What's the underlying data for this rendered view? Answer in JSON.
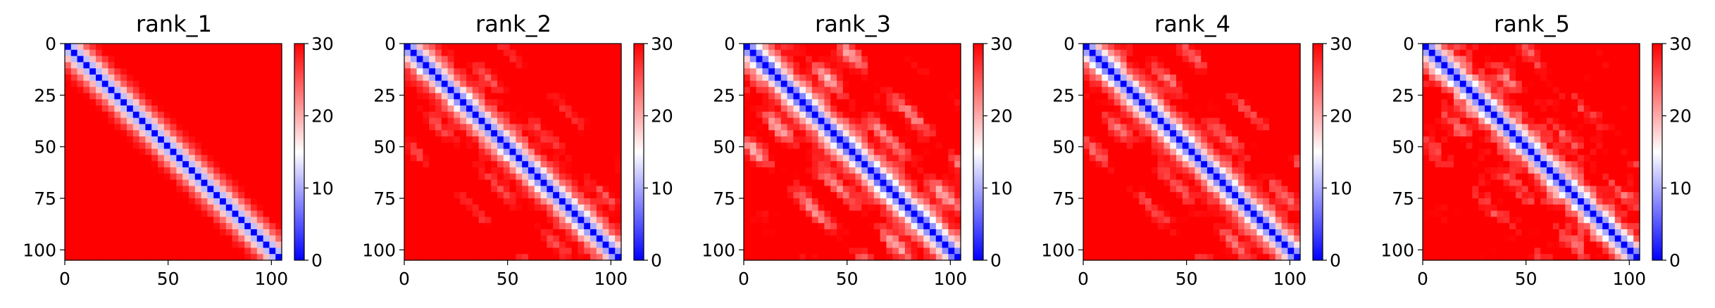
{
  "chart_data": [
    {
      "type": "heatmap",
      "title": "rank_1",
      "pattern": "smooth",
      "matrix_size": 105,
      "x_ticks": [
        0,
        50,
        100
      ],
      "y_ticks": [
        0,
        25,
        50,
        75,
        100
      ],
      "colorbar": {
        "min": 0,
        "max": 30,
        "ticks": [
          0,
          10,
          20,
          30
        ],
        "colormap": "bwr",
        "colors": [
          "#0000ff",
          "#ffffff",
          "#ff0000"
        ]
      },
      "description": "distance map: low values (blue) along the main diagonal, high values (red) elsewhere"
    },
    {
      "type": "heatmap",
      "title": "rank_2",
      "pattern": "light_bands",
      "matrix_size": 105,
      "x_ticks": [
        0,
        50,
        100
      ],
      "y_ticks": [
        0,
        25,
        50,
        75,
        100
      ],
      "colorbar": {
        "min": 0,
        "max": 30,
        "ticks": [
          0,
          10,
          20,
          30
        ],
        "colormap": "bwr",
        "colors": [
          "#0000ff",
          "#ffffff",
          "#ff0000"
        ]
      },
      "description": "distance map: blue main diagonal with faint lighter parallel bands"
    },
    {
      "type": "heatmap",
      "title": "rank_3",
      "pattern": "strong_bands",
      "matrix_size": 105,
      "x_ticks": [
        0,
        50,
        100
      ],
      "y_ticks": [
        0,
        25,
        50,
        75,
        100
      ],
      "colorbar": {
        "min": 0,
        "max": 30,
        "ticks": [
          0,
          10,
          20,
          30
        ],
        "colormap": "bwr",
        "colors": [
          "#0000ff",
          "#ffffff",
          "#ff0000"
        ]
      },
      "description": "distance map: blue main diagonal with pronounced white/light-blue off-diagonal bands"
    },
    {
      "type": "heatmap",
      "title": "rank_4",
      "pattern": "bands",
      "matrix_size": 105,
      "x_ticks": [
        0,
        50,
        100
      ],
      "y_ticks": [
        0,
        25,
        50,
        75,
        100
      ],
      "colorbar": {
        "min": 0,
        "max": 30,
        "ticks": [
          0,
          10,
          20,
          30
        ],
        "colormap": "bwr",
        "colors": [
          "#0000ff",
          "#ffffff",
          "#ff0000"
        ]
      },
      "description": "distance map: blue main diagonal with lighter parallel bands"
    },
    {
      "type": "heatmap",
      "title": "rank_5",
      "pattern": "noisy_bands",
      "matrix_size": 105,
      "x_ticks": [
        0,
        50,
        100
      ],
      "y_ticks": [
        0,
        25,
        50,
        75,
        100
      ],
      "colorbar": {
        "min": 0,
        "max": 30,
        "ticks": [
          0,
          10,
          20,
          30
        ],
        "colormap": "bwr",
        "colors": [
          "#0000ff",
          "#ffffff",
          "#ff0000"
        ]
      },
      "description": "distance map: blue main diagonal with paler, noisier background"
    }
  ]
}
